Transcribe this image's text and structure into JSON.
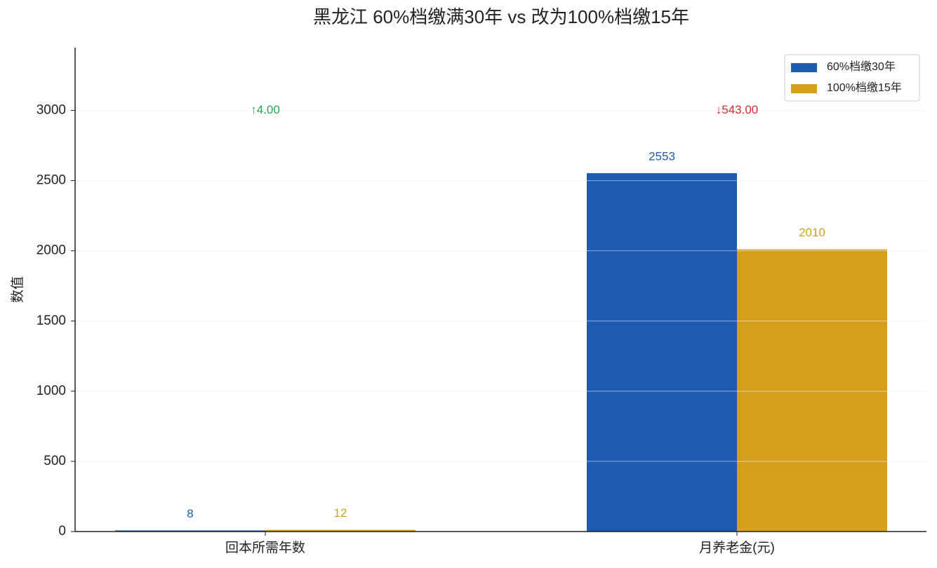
{
  "chart_data": {
    "type": "bar",
    "title": "黑龙江 60%档缴满30年 vs 改为100%档缴15年",
    "y_label": "数值",
    "categories": [
      "回本所需年数",
      "月养老金(元)"
    ],
    "series": [
      {
        "name": "60%档缴30年",
        "color": "#1f5baf",
        "values": [
          8,
          2553
        ]
      },
      {
        "name": "100%档缴15年",
        "color": "#d4a01c",
        "values": [
          12,
          2010
        ]
      }
    ],
    "annotations": [
      {
        "text": "↑4.00",
        "category": 0,
        "y": 3000,
        "color": "#27a554"
      },
      {
        "text": "↓543.00",
        "category": 1,
        "y": 3000,
        "color": "#d62a2a"
      }
    ],
    "ylim": [
      0,
      3447
    ],
    "yticks": [
      0,
      500,
      1000,
      1500,
      2000,
      2500,
      3000
    ],
    "grid": true,
    "legend": "upper right"
  }
}
